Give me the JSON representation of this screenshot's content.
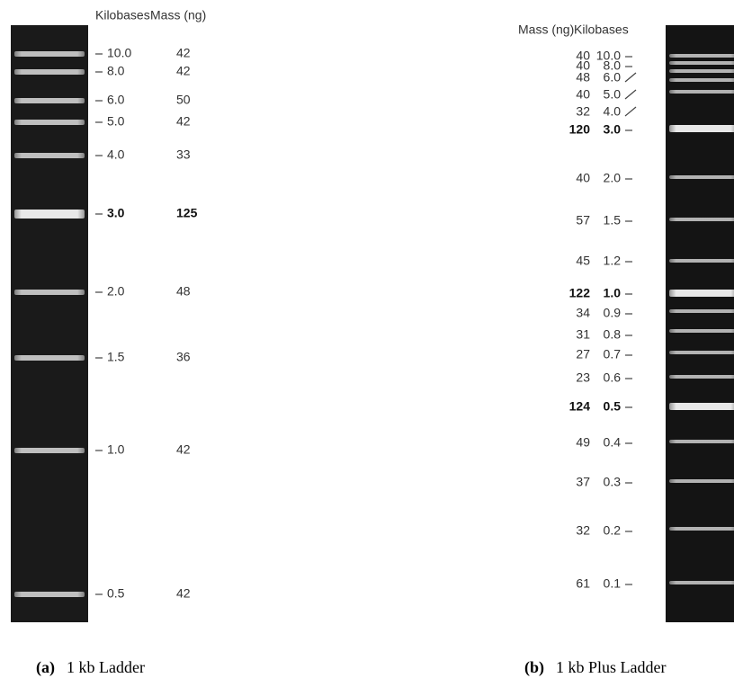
{
  "panel_a": {
    "headers": {
      "kilobases": "Kilobases",
      "mass": "Mass (ng)"
    },
    "rows": [
      {
        "kb": "10.0",
        "mass": 42,
        "bold": false
      },
      {
        "kb": "8.0",
        "mass": 42,
        "bold": false
      },
      {
        "kb": "6.0",
        "mass": 50,
        "bold": false
      },
      {
        "kb": "5.0",
        "mass": 42,
        "bold": false
      },
      {
        "kb": "4.0",
        "mass": 33,
        "bold": false
      },
      {
        "kb": "3.0",
        "mass": 125,
        "bold": true
      },
      {
        "kb": "2.0",
        "mass": 48,
        "bold": false
      },
      {
        "kb": "1.5",
        "mass": 36,
        "bold": false
      },
      {
        "kb": "1.0",
        "mass": 42,
        "bold": false
      },
      {
        "kb": "0.5",
        "mass": 42,
        "bold": false
      }
    ],
    "caption": {
      "label": "(a)",
      "text": "1 kb Ladder"
    }
  },
  "panel_b": {
    "headers": {
      "mass": "Mass (ng)",
      "kilobases": "Kilobases"
    },
    "rows": [
      {
        "kb": "10.0",
        "mass": 40,
        "bold": false
      },
      {
        "kb": "8.0",
        "mass": 40,
        "bold": false
      },
      {
        "kb": "6.0",
        "mass": 48,
        "bold": false
      },
      {
        "kb": "5.0",
        "mass": 40,
        "bold": false
      },
      {
        "kb": "4.0",
        "mass": 32,
        "bold": false
      },
      {
        "kb": "3.0",
        "mass": 120,
        "bold": true
      },
      {
        "kb": "2.0",
        "mass": 40,
        "bold": false
      },
      {
        "kb": "1.5",
        "mass": 57,
        "bold": false
      },
      {
        "kb": "1.2",
        "mass": 45,
        "bold": false
      },
      {
        "kb": "1.0",
        "mass": 122,
        "bold": true
      },
      {
        "kb": "0.9",
        "mass": 34,
        "bold": false
      },
      {
        "kb": "0.8",
        "mass": 31,
        "bold": false
      },
      {
        "kb": "0.7",
        "mass": 27,
        "bold": false
      },
      {
        "kb": "0.6",
        "mass": 23,
        "bold": false
      },
      {
        "kb": "0.5",
        "mass": 124,
        "bold": true
      },
      {
        "kb": "0.4",
        "mass": 49,
        "bold": false
      },
      {
        "kb": "0.3",
        "mass": 37,
        "bold": false
      },
      {
        "kb": "0.2",
        "mass": 32,
        "bold": false
      },
      {
        "kb": "0.1",
        "mass": 61,
        "bold": false
      }
    ],
    "caption": {
      "label": "(b)",
      "text": "1 kb Plus Ladder"
    }
  }
}
